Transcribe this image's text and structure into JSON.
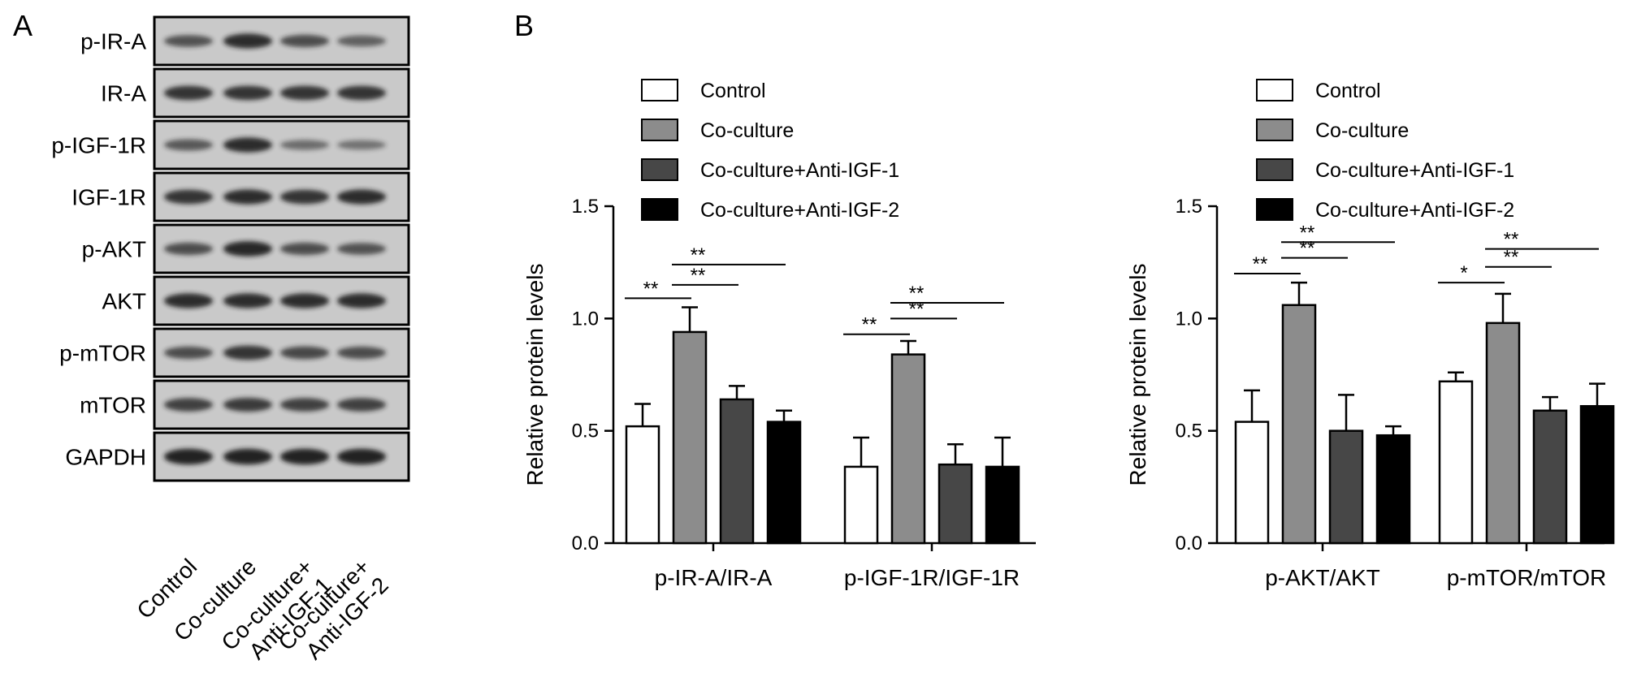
{
  "panel_a": {
    "letter": "A",
    "band_rows": [
      {
        "label": "p-IR-A",
        "intensities": [
          0.55,
          0.85,
          0.6,
          0.45
        ]
      },
      {
        "label": "IR-A",
        "intensities": [
          0.8,
          0.8,
          0.8,
          0.8
        ]
      },
      {
        "label": "p-IGF-1R",
        "intensities": [
          0.5,
          0.85,
          0.35,
          0.3
        ]
      },
      {
        "label": "IGF-1R",
        "intensities": [
          0.8,
          0.85,
          0.8,
          0.85
        ]
      },
      {
        "label": "p-AKT",
        "intensities": [
          0.6,
          0.9,
          0.6,
          0.55
        ]
      },
      {
        "label": "AKT",
        "intensities": [
          0.85,
          0.85,
          0.85,
          0.85
        ]
      },
      {
        "label": "p-mTOR",
        "intensities": [
          0.6,
          0.8,
          0.65,
          0.6
        ]
      },
      {
        "label": "mTOR",
        "intensities": [
          0.7,
          0.75,
          0.7,
          0.7
        ]
      },
      {
        "label": "GAPDH",
        "intensities": [
          0.95,
          0.95,
          0.95,
          0.95
        ]
      }
    ],
    "lanes": [
      {
        "lines": [
          "Control"
        ]
      },
      {
        "lines": [
          "Co-culture"
        ]
      },
      {
        "lines": [
          "Co-culture+",
          "Anti-IGF-1"
        ]
      },
      {
        "lines": [
          "Co-culture+",
          "Anti-IGF-2"
        ]
      }
    ]
  },
  "panel_b": {
    "letter": "B"
  },
  "colors": {
    "Control": "#ffffff",
    "Co-culture": "#8c8c8c",
    "Co-culture+Anti-IGF-1": "#474747",
    "Co-culture+Anti-IGF-2": "#000000",
    "blot_bg": "#c9c9c9",
    "band": "#1e1e1e"
  },
  "chart_data": [
    {
      "type": "bar",
      "title": "",
      "xlabel": "",
      "ylabel": "Relative protein levels",
      "ylim": [
        0,
        1.5
      ],
      "yticks": [
        "0.0",
        "0.5",
        "1.0",
        "1.5"
      ],
      "categories": [
        "p-IR-A/IR-A",
        "p-IGF-1R/IGF-1R"
      ],
      "legend": "top-left",
      "series": [
        {
          "name": "Control",
          "values": [
            0.52,
            0.34
          ],
          "errors": [
            0.1,
            0.13
          ]
        },
        {
          "name": "Co-culture",
          "values": [
            0.94,
            0.84
          ],
          "errors": [
            0.11,
            0.06
          ]
        },
        {
          "name": "Co-culture+Anti-IGF-1",
          "values": [
            0.64,
            0.35
          ],
          "errors": [
            0.06,
            0.09
          ]
        },
        {
          "name": "Co-culture+Anti-IGF-2",
          "values": [
            0.54,
            0.34
          ],
          "errors": [
            0.05,
            0.13
          ]
        }
      ],
      "significance": [
        {
          "category": 0,
          "from": 0,
          "to": 1,
          "label": "**",
          "y": 1.09
        },
        {
          "category": 0,
          "from": 1,
          "to": 2,
          "label": "**",
          "y": 1.15
        },
        {
          "category": 0,
          "from": 1,
          "to": 3,
          "label": "**",
          "y": 1.24
        },
        {
          "category": 1,
          "from": 0,
          "to": 1,
          "label": "**",
          "y": 0.93
        },
        {
          "category": 1,
          "from": 1,
          "to": 2,
          "label": "**",
          "y": 1.0
        },
        {
          "category": 1,
          "from": 1,
          "to": 3,
          "label": "**",
          "y": 1.07
        }
      ]
    },
    {
      "type": "bar",
      "title": "",
      "xlabel": "",
      "ylabel": "Relative protein levels",
      "ylim": [
        0,
        1.5
      ],
      "yticks": [
        "0.0",
        "0.5",
        "1.0",
        "1.5"
      ],
      "categories": [
        "p-AKT/AKT",
        "p-mTOR/mTOR"
      ],
      "legend": "top-left",
      "series": [
        {
          "name": "Control",
          "values": [
            0.54,
            0.72
          ],
          "errors": [
            0.14,
            0.04
          ]
        },
        {
          "name": "Co-culture",
          "values": [
            1.06,
            0.98
          ],
          "errors": [
            0.1,
            0.13
          ]
        },
        {
          "name": "Co-culture+Anti-IGF-1",
          "values": [
            0.5,
            0.59
          ],
          "errors": [
            0.16,
            0.06
          ]
        },
        {
          "name": "Co-culture+Anti-IGF-2",
          "values": [
            0.48,
            0.61
          ],
          "errors": [
            0.04,
            0.1
          ]
        }
      ],
      "significance": [
        {
          "category": 0,
          "from": 0,
          "to": 1,
          "label": "**",
          "y": 1.2
        },
        {
          "category": 0,
          "from": 1,
          "to": 2,
          "label": "**",
          "y": 1.27
        },
        {
          "category": 0,
          "from": 1,
          "to": 3,
          "label": "**",
          "y": 1.34
        },
        {
          "category": 1,
          "from": 0,
          "to": 1,
          "label": "*",
          "y": 1.16
        },
        {
          "category": 1,
          "from": 1,
          "to": 2,
          "label": "**",
          "y": 1.23
        },
        {
          "category": 1,
          "from": 1,
          "to": 3,
          "label": "**",
          "y": 1.31
        }
      ]
    }
  ]
}
